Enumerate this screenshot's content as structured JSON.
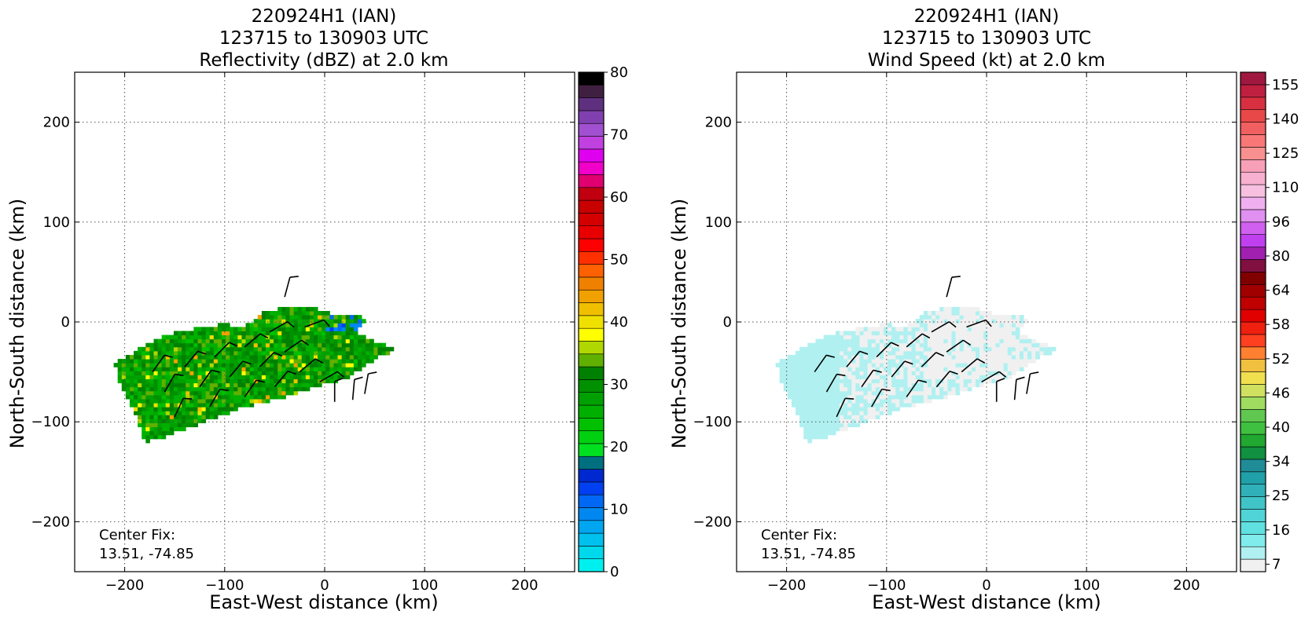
{
  "figure": {
    "panels": [
      {
        "title_lines": [
          "220924H1 (IAN)",
          "123715 to 130903 UTC",
          "Reflectivity (dBZ) at 2.0 km"
        ],
        "xlabel": "East-West distance (km)",
        "ylabel": "North-South distance (km)",
        "note_lines": [
          "Center Fix:",
          "13.51, -74.85"
        ],
        "colorbar_labels": [
          "0",
          "10",
          "20",
          "30",
          "40",
          "50",
          "60",
          "70",
          "80"
        ]
      },
      {
        "title_lines": [
          "220924H1 (IAN)",
          "123715 to 130903 UTC",
          "Wind Speed (kt) at 2.0 km"
        ],
        "xlabel": "East-West distance (km)",
        "ylabel": "North-South distance (km)",
        "note_lines": [
          "Center Fix:",
          "13.51, -74.85"
        ],
        "colorbar_labels": [
          "7",
          "16",
          "25",
          "34",
          "40",
          "46",
          "52",
          "58",
          "64",
          "80",
          "96",
          "110",
          "125",
          "140",
          "155"
        ]
      }
    ]
  },
  "chart_data": [
    {
      "type": "heatmap",
      "title": "220924H1 (IAN) 123715 to 130903 UTC Reflectivity (dBZ) at 2.0 km",
      "xlabel": "East-West distance (km)",
      "ylabel": "North-South distance (km)",
      "xlim": [
        -250,
        250
      ],
      "ylim": [
        -250,
        250
      ],
      "xticks": [
        -200,
        -100,
        0,
        100,
        200
      ],
      "yticks": [
        -200,
        -100,
        0,
        100,
        200
      ],
      "xtick_labels": [
        "−200",
        "−100",
        "0",
        "100",
        "200"
      ],
      "ytick_labels": [
        "−200",
        "−100",
        "0",
        "100",
        "200"
      ],
      "grid": true,
      "annotation": "Center Fix: 13.51, -74.85",
      "colorbar": {
        "label_values": [
          0,
          10,
          20,
          30,
          40,
          50,
          60,
          70,
          80
        ],
        "colors": [
          "#00f0f0",
          "#00d8ec",
          "#00c0ee",
          "#00a6f0",
          "#0088f0",
          "#0068f5",
          "#0040f0",
          "#0028d0",
          "#007080",
          "#00e020",
          "#00d010",
          "#00c000",
          "#00b000",
          "#00a000",
          "#009000",
          "#008000",
          "#60b000",
          "#b0d800",
          "#ffff00",
          "#f0e000",
          "#f0c000",
          "#f0a000",
          "#f08000",
          "#ff6000",
          "#ff3000",
          "#ff0000",
          "#e80000",
          "#d40000",
          "#c80000",
          "#c00010",
          "#e00070",
          "#f000c8",
          "#e000f0",
          "#c040e0",
          "#a050d0",
          "#8040b0",
          "#603080",
          "#402040",
          "#000000"
        ]
      },
      "echo_region": {
        "description_outline_km": [
          [
            -210,
            -40
          ],
          [
            -190,
            -30
          ],
          [
            -175,
            -20
          ],
          [
            -150,
            -10
          ],
          [
            -120,
            -5
          ],
          [
            -100,
            -2
          ],
          [
            -80,
            -5
          ],
          [
            -60,
            10
          ],
          [
            -40,
            15
          ],
          [
            -10,
            15
          ],
          [
            15,
            5
          ],
          [
            38,
            8
          ],
          [
            40,
            0
          ],
          [
            30,
            -10
          ],
          [
            50,
            -20
          ],
          [
            60,
            -22
          ],
          [
            72,
            -28
          ],
          [
            55,
            -35
          ],
          [
            40,
            -45
          ],
          [
            25,
            -55
          ],
          [
            10,
            -60
          ],
          [
            -10,
            -65
          ],
          [
            -40,
            -75
          ],
          [
            -80,
            -85
          ],
          [
            -120,
            -100
          ],
          [
            -160,
            -115
          ],
          [
            -180,
            -120
          ],
          [
            -190,
            -90
          ],
          [
            -205,
            -60
          ]
        ],
        "dominant_dbz": [
          20,
          35
        ]
      },
      "wind_barbs": [
        {
          "x": -172,
          "y": -50,
          "dir": 35
        },
        {
          "x": -160,
          "y": -70,
          "dir": 30
        },
        {
          "x": -150,
          "y": -95,
          "dir": 25
        },
        {
          "x": -140,
          "y": -45,
          "dir": 40
        },
        {
          "x": -125,
          "y": -65,
          "dir": 35
        },
        {
          "x": -115,
          "y": -85,
          "dir": 30
        },
        {
          "x": -110,
          "y": -35,
          "dir": 45
        },
        {
          "x": -95,
          "y": -55,
          "dir": 40
        },
        {
          "x": -80,
          "y": -75,
          "dir": 35
        },
        {
          "x": -80,
          "y": -25,
          "dir": 50
        },
        {
          "x": -65,
          "y": -45,
          "dir": 45
        },
        {
          "x": -50,
          "y": -65,
          "dir": 40
        },
        {
          "x": -55,
          "y": -10,
          "dir": 60
        },
        {
          "x": -40,
          "y": -30,
          "dir": 55
        },
        {
          "x": -25,
          "y": -50,
          "dir": 50
        },
        {
          "x": -40,
          "y": 25,
          "dir": 15
        },
        {
          "x": -20,
          "y": -5,
          "dir": 70
        },
        {
          "x": -5,
          "y": -60,
          "dir": 60
        },
        {
          "x": 10,
          "y": -80,
          "dir": 0
        },
        {
          "x": 28,
          "y": -78,
          "dir": 5
        },
        {
          "x": 40,
          "y": -72,
          "dir": 10
        }
      ]
    },
    {
      "type": "heatmap",
      "title": "220924H1 (IAN) 123715 to 130903 UTC Wind Speed (kt) at 2.0 km",
      "xlabel": "East-West distance (km)",
      "ylabel": "North-South distance (km)",
      "xlim": [
        -250,
        250
      ],
      "ylim": [
        -250,
        250
      ],
      "xticks": [
        -200,
        -100,
        0,
        100,
        200
      ],
      "yticks": [
        -200,
        -100,
        0,
        100,
        200
      ],
      "xtick_labels": [
        "−200",
        "−100",
        "0",
        "100",
        "200"
      ],
      "ytick_labels": [
        "−200",
        "−100",
        "0",
        "100",
        "200"
      ],
      "grid": true,
      "annotation": "Center Fix: 13.51, -74.85",
      "colorbar": {
        "label_values": [
          7,
          16,
          25,
          34,
          40,
          46,
          52,
          58,
          64,
          80,
          96,
          110,
          125,
          140,
          155
        ],
        "colors": [
          "#f0f0f0",
          "#b0f0f0",
          "#80ecec",
          "#60e0e0",
          "#50d4d8",
          "#40c4c8",
          "#30b0b8",
          "#20a0a8",
          "#208c98",
          "#109040",
          "#20a830",
          "#40c040",
          "#60c850",
          "#a0dc60",
          "#d0e060",
          "#f0e050",
          "#f0c040",
          "#ff8030",
          "#ff4020",
          "#f02010",
          "#e00000",
          "#c00000",
          "#a00000",
          "#800000",
          "#801040",
          "#a020b0",
          "#c040f0",
          "#d060f0",
          "#e090f0",
          "#f0b0f0",
          "#f8c0e0",
          "#f8b0d0",
          "#f8a0b8",
          "#f89090",
          "#f87878",
          "#f06060",
          "#e84848",
          "#d83040",
          "#c02040",
          "#a01840"
        ]
      },
      "echo_region": {
        "description_outline_km": [
          [
            -210,
            -40
          ],
          [
            -190,
            -30
          ],
          [
            -175,
            -20
          ],
          [
            -150,
            -10
          ],
          [
            -120,
            -5
          ],
          [
            -100,
            -2
          ],
          [
            -80,
            -5
          ],
          [
            -60,
            10
          ],
          [
            -40,
            15
          ],
          [
            -10,
            15
          ],
          [
            15,
            5
          ],
          [
            38,
            8
          ],
          [
            40,
            0
          ],
          [
            30,
            -10
          ],
          [
            50,
            -20
          ],
          [
            60,
            -22
          ],
          [
            72,
            -28
          ],
          [
            55,
            -35
          ],
          [
            40,
            -45
          ],
          [
            25,
            -55
          ],
          [
            10,
            -60
          ],
          [
            -10,
            -65
          ],
          [
            -40,
            -75
          ],
          [
            -80,
            -85
          ],
          [
            -120,
            -100
          ],
          [
            -160,
            -115
          ],
          [
            -180,
            -120
          ],
          [
            -190,
            -90
          ],
          [
            -205,
            -60
          ]
        ],
        "dominant_kt": [
          7,
          25
        ]
      },
      "wind_barbs": [
        {
          "x": -172,
          "y": -50,
          "dir": 35
        },
        {
          "x": -160,
          "y": -70,
          "dir": 30
        },
        {
          "x": -150,
          "y": -95,
          "dir": 25
        },
        {
          "x": -140,
          "y": -45,
          "dir": 40
        },
        {
          "x": -125,
          "y": -65,
          "dir": 35
        },
        {
          "x": -115,
          "y": -85,
          "dir": 30
        },
        {
          "x": -110,
          "y": -35,
          "dir": 45
        },
        {
          "x": -95,
          "y": -55,
          "dir": 40
        },
        {
          "x": -80,
          "y": -75,
          "dir": 35
        },
        {
          "x": -80,
          "y": -25,
          "dir": 50
        },
        {
          "x": -65,
          "y": -45,
          "dir": 45
        },
        {
          "x": -50,
          "y": -65,
          "dir": 40
        },
        {
          "x": -55,
          "y": -10,
          "dir": 60
        },
        {
          "x": -40,
          "y": -30,
          "dir": 55
        },
        {
          "x": -25,
          "y": -50,
          "dir": 50
        },
        {
          "x": -40,
          "y": 25,
          "dir": 15
        },
        {
          "x": -20,
          "y": -5,
          "dir": 70
        },
        {
          "x": -5,
          "y": -60,
          "dir": 60
        },
        {
          "x": 10,
          "y": -80,
          "dir": 0
        },
        {
          "x": 28,
          "y": -78,
          "dir": 5
        },
        {
          "x": 40,
          "y": -72,
          "dir": 10
        }
      ]
    }
  ]
}
